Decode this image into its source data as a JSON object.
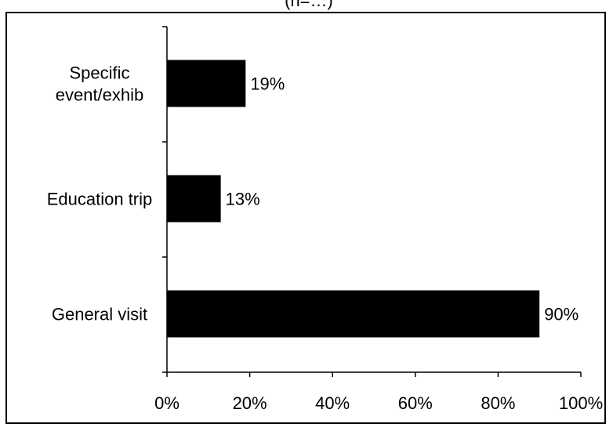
{
  "chart_data": {
    "type": "bar",
    "orientation": "horizontal",
    "title": "(n=…)",
    "categories": [
      "Specific event/exhib",
      "Education trip",
      "General visit"
    ],
    "category_lines": [
      [
        "Specific",
        "event/exhib"
      ],
      [
        "Education trip"
      ],
      [
        "General visit"
      ]
    ],
    "values": [
      19,
      13,
      90
    ],
    "value_labels": [
      "19%",
      "13%",
      "90%"
    ],
    "xlim": [
      0,
      100
    ],
    "x_ticks": [
      0,
      20,
      40,
      60,
      80,
      100
    ],
    "x_tick_labels": [
      "0%",
      "20%",
      "40%",
      "60%",
      "80%",
      "100%"
    ],
    "xlabel": "",
    "ylabel": "",
    "grid": false,
    "legend": "none",
    "bar_color": "#000000"
  }
}
